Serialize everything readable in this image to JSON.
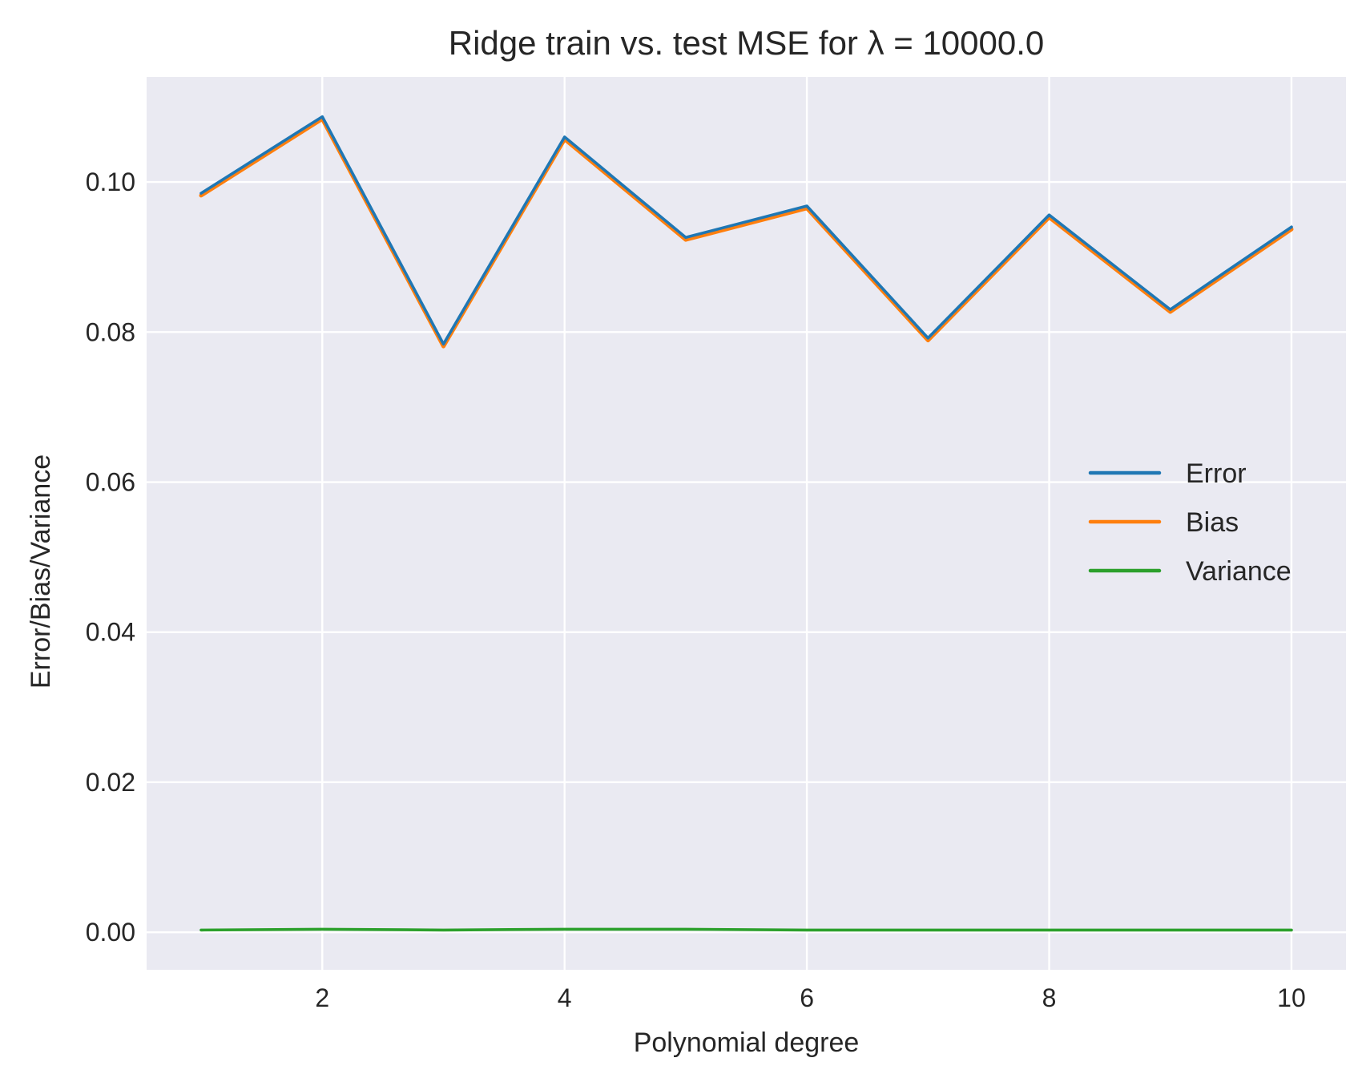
{
  "chart_data": {
    "type": "line",
    "title": "Ridge train vs. test MSE for λ =  10000.0",
    "xlabel": "Polynomial degree",
    "ylabel": "Error/Bias/Variance",
    "x": [
      1,
      2,
      3,
      4,
      5,
      6,
      7,
      8,
      9,
      10
    ],
    "xlim": [
      0.55,
      10.45
    ],
    "ylim": [
      -0.005,
      0.114
    ],
    "xticks": [
      2,
      4,
      6,
      8,
      10
    ],
    "xtick_labels": [
      "2",
      "4",
      "6",
      "8",
      "10"
    ],
    "yticks": [
      0.0,
      0.02,
      0.04,
      0.06,
      0.08,
      0.1
    ],
    "ytick_labels": [
      "0.00",
      "0.02",
      "0.04",
      "0.06",
      "0.08",
      "0.10"
    ],
    "grid": true,
    "legend_position": "center-right",
    "background_color": "#eaeaf2",
    "grid_color": "#ffffff",
    "series": [
      {
        "name": "Error",
        "color": "#1f77b4",
        "values": [
          0.0985,
          0.1087,
          0.0784,
          0.106,
          0.0926,
          0.0968,
          0.0792,
          0.0956,
          0.083,
          0.094
        ]
      },
      {
        "name": "Bias",
        "color": "#ff7f0e",
        "values": [
          0.0982,
          0.1084,
          0.0781,
          0.1057,
          0.0923,
          0.0965,
          0.0789,
          0.0953,
          0.0827,
          0.0937
        ]
      },
      {
        "name": "Variance",
        "color": "#2ca02c",
        "values": [
          0.0003,
          0.0004,
          0.0003,
          0.0004,
          0.0004,
          0.0003,
          0.0003,
          0.0003,
          0.0003,
          0.0003
        ]
      }
    ]
  }
}
